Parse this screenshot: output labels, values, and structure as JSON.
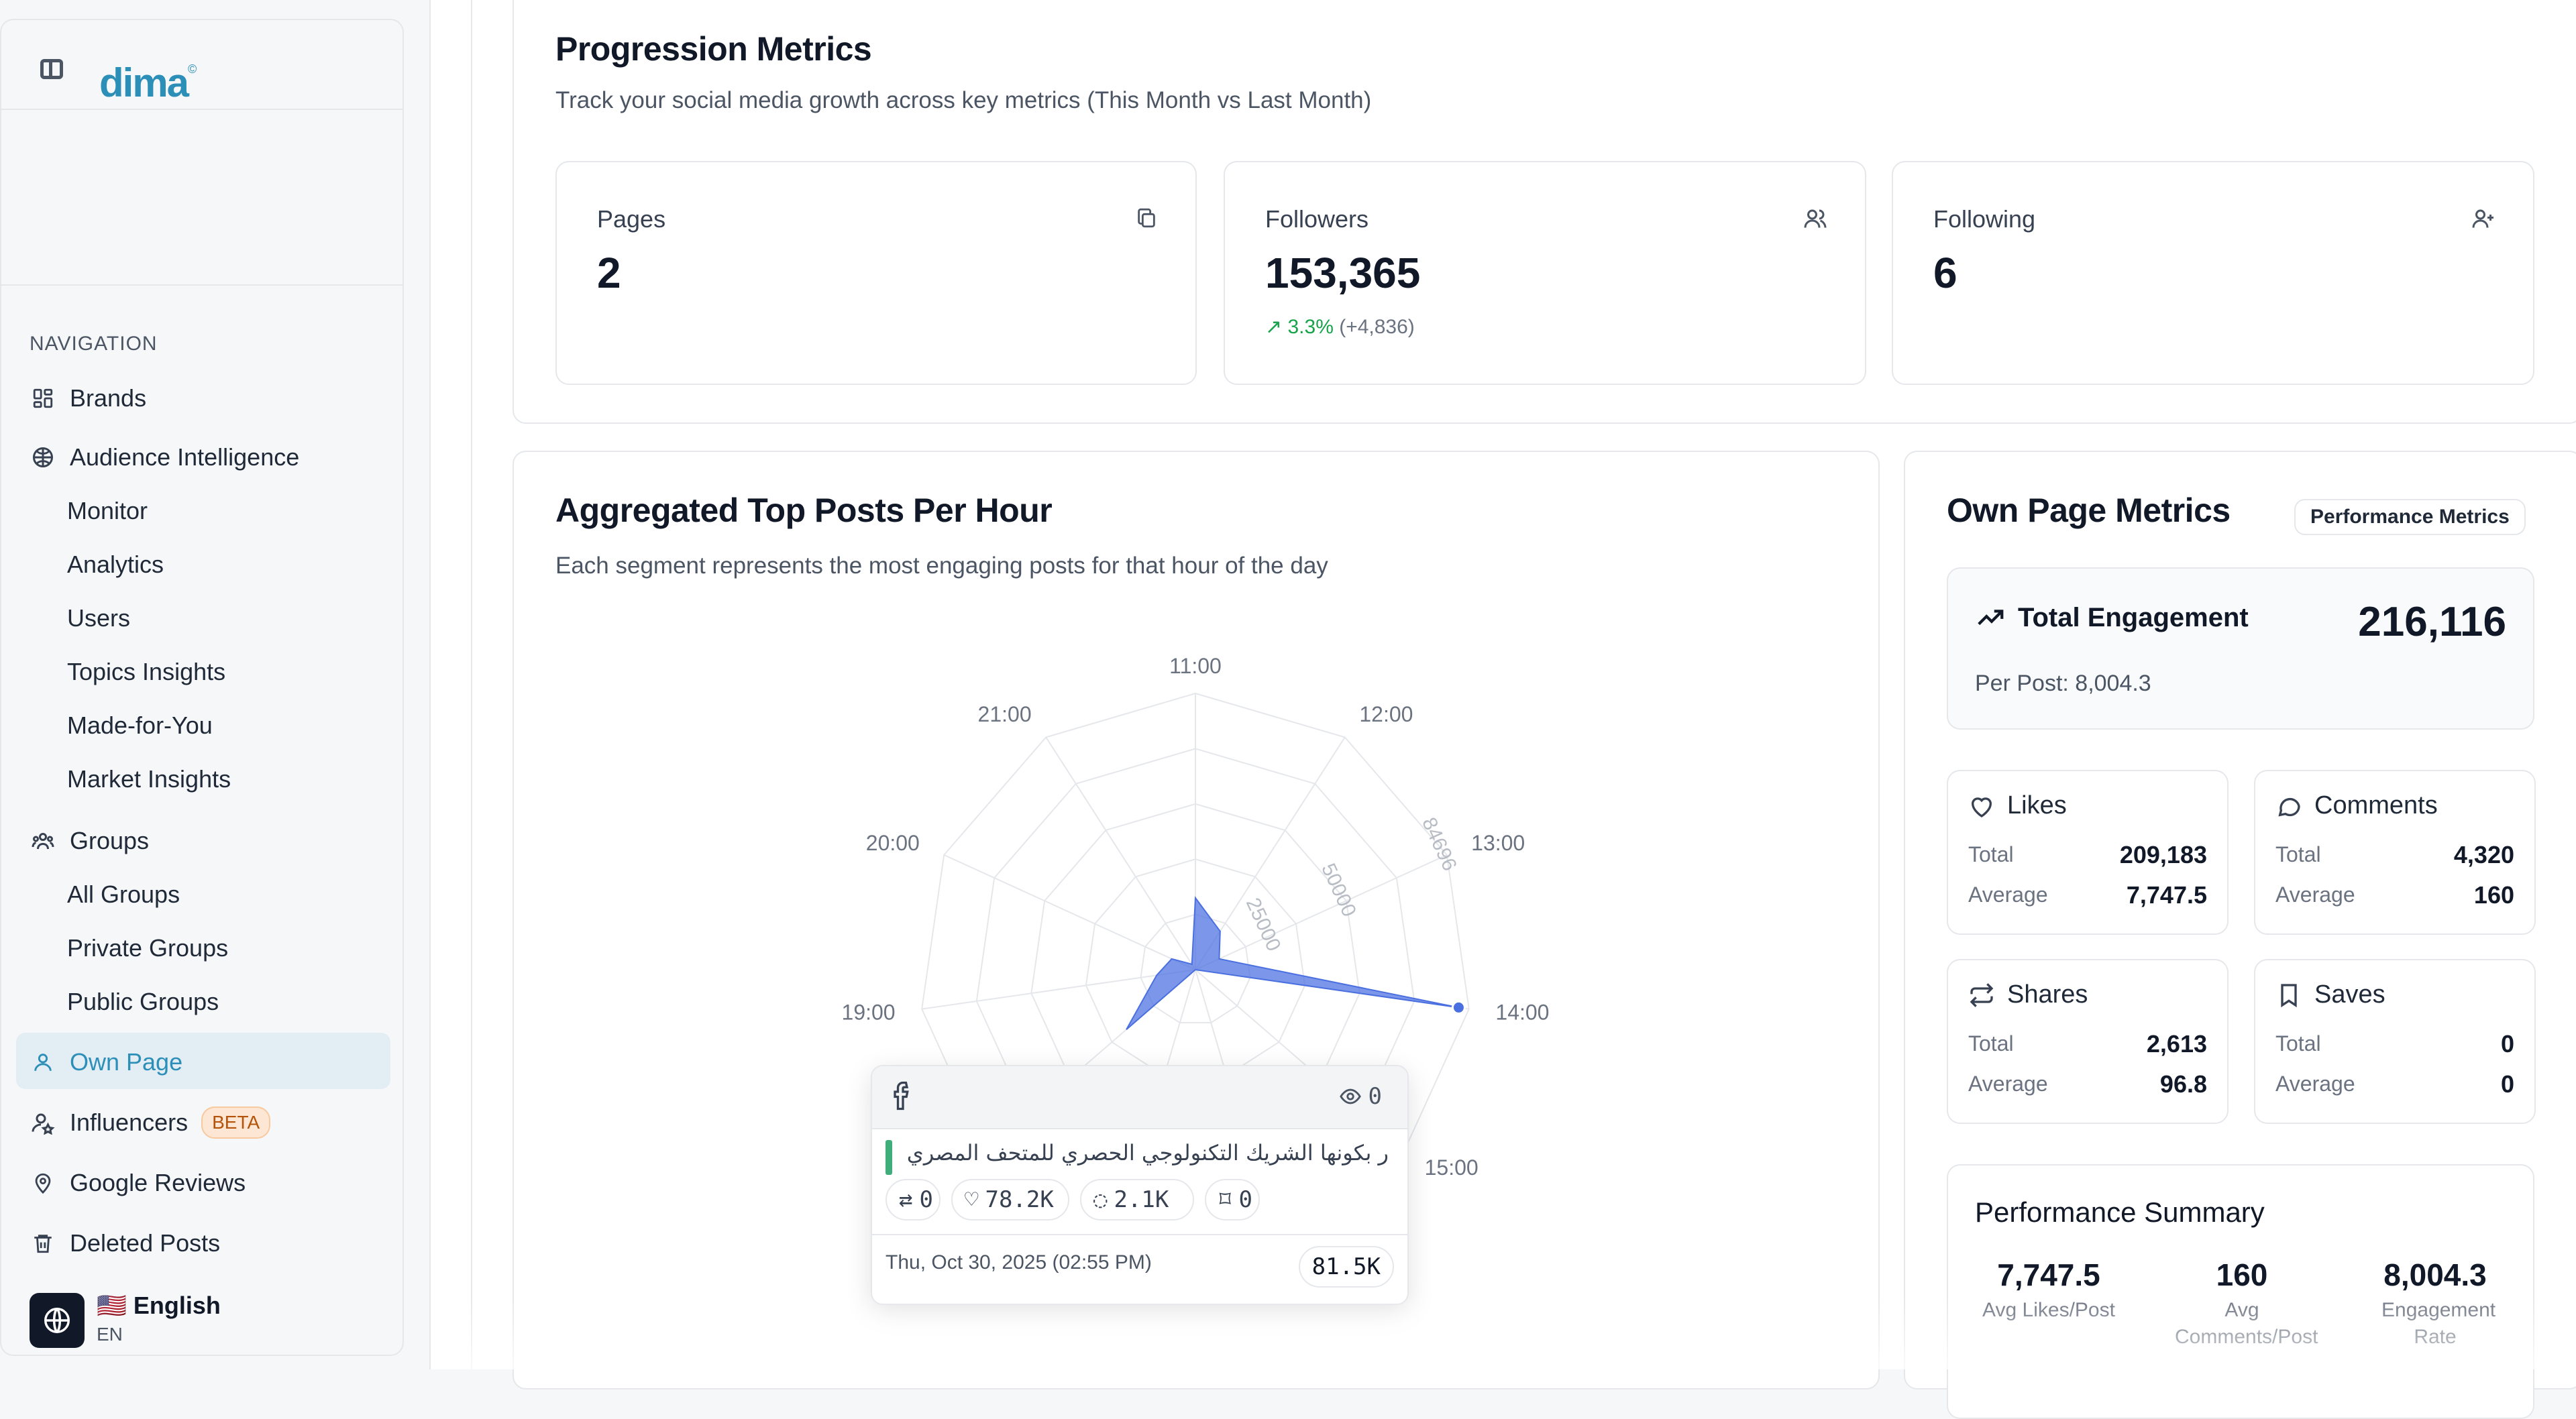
{
  "app": {
    "logo": "dima"
  },
  "sidebar": {
    "nav_heading": "NAVIGATION",
    "items": {
      "brands": "Brands",
      "audience": "Audience Intelligence",
      "monitor": "Monitor",
      "analytics": "Analytics",
      "users": "Users",
      "topics": "Topics Insights",
      "made_for_you": "Made-for-You",
      "market": "Market Insights",
      "groups": "Groups",
      "all_groups": "All Groups",
      "private_groups": "Private Groups",
      "public_groups": "Public Groups",
      "own_page": "Own Page",
      "influencers": "Influencers",
      "influencers_badge": "BETA",
      "google_reviews": "Google Reviews",
      "deleted_posts": "Deleted Posts"
    },
    "language": {
      "flag": "🇺🇸",
      "name": "English",
      "code": "EN"
    }
  },
  "progression": {
    "title": "Progression Metrics",
    "subtitle": "Track your social media growth across key metrics (This Month vs Last Month)",
    "cards": {
      "pages": {
        "label": "Pages",
        "value": "2"
      },
      "followers": {
        "label": "Followers",
        "value": "153,365",
        "growth_pct": "3.3%",
        "growth_abs": "(+4,836)"
      },
      "following": {
        "label": "Following",
        "value": "6"
      }
    }
  },
  "top_posts": {
    "title": "Aggregated Top Posts Per Hour",
    "subtitle": "Each segment represents the most engaging posts for that hour of the day",
    "tooltip": {
      "views": "0",
      "text": "ر بكونها الشريك التكنولوجي الحصري للمتحف المصري الكبير...",
      "shares": "0",
      "likes": "78.2K",
      "comments": "2.1K",
      "saves": "0",
      "date": "Thu, Oct 30, 2025 (02:55 PM)",
      "total": "81.5K"
    }
  },
  "chart_data": {
    "type": "radar",
    "axes": [
      "11:00",
      "12:00",
      "13:00",
      "14:00",
      "15:00",
      "16:00",
      "17:00",
      "18:00",
      "19:00",
      "20:00",
      "21:00"
    ],
    "radial_ticks": [
      "25000",
      "50000",
      "84696"
    ],
    "rmax": 84696,
    "values": [
      22000,
      14000,
      8000,
      81500,
      0,
      0,
      0,
      28000,
      12000,
      8000,
      2000
    ],
    "color": "#4a6fe0"
  },
  "own_page": {
    "title": "Own Page Metrics",
    "badge": "Performance Metrics",
    "total_engagement": {
      "label": "Total Engagement",
      "value": "216,116",
      "per_post": "Per Post: 8,004.3"
    },
    "likes": {
      "label": "Likes",
      "total_label": "Total",
      "total": "209,183",
      "avg_label": "Average",
      "avg": "7,747.5"
    },
    "comments": {
      "label": "Comments",
      "total_label": "Total",
      "total": "4,320",
      "avg_label": "Average",
      "avg": "160"
    },
    "shares": {
      "label": "Shares",
      "total_label": "Total",
      "total": "2,613",
      "avg_label": "Average",
      "avg": "96.8"
    },
    "saves": {
      "label": "Saves",
      "total_label": "Total",
      "total": "0",
      "avg_label": "Average",
      "avg": "0"
    },
    "summary": {
      "title": "Performance Summary",
      "avg_likes": {
        "value": "7,747.5",
        "label": "Avg Likes/Post"
      },
      "avg_comments": {
        "value": "160",
        "label": "Avg Comments/Post"
      },
      "engagement_rate": {
        "value": "8,004.3",
        "label": "Engagement Rate"
      }
    }
  },
  "colors": {
    "accent": "#2b8fb8",
    "active_bg": "#e3edf4",
    "growth": "#16a34a",
    "chart": "#4a6fe0"
  }
}
